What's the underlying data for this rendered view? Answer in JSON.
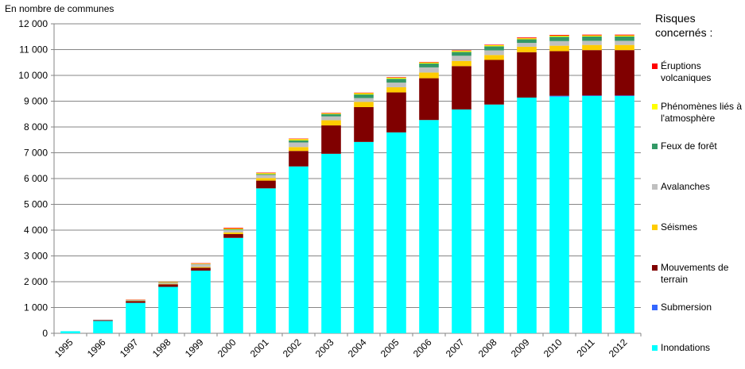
{
  "chart_data": {
    "type": "bar",
    "stacked": true,
    "title": "",
    "ylabel": "En nombre de communes",
    "xlabel": "",
    "ylim": [
      0,
      12000
    ],
    "yticks": [
      0,
      1000,
      2000,
      3000,
      4000,
      5000,
      6000,
      7000,
      8000,
      9000,
      10000,
      11000,
      12000
    ],
    "ytick_labels": [
      "0",
      "1 000",
      "2 000",
      "3 000",
      "4 000",
      "5 000",
      "6 000",
      "7 000",
      "8 000",
      "9 000",
      "10 000",
      "11 000",
      "12 000"
    ],
    "grid": "horizontal",
    "categories": [
      "1995",
      "1996",
      "1997",
      "1998",
      "1999",
      "2000",
      "2001",
      "2002",
      "2003",
      "2004",
      "2005",
      "2006",
      "2007",
      "2008",
      "2009",
      "2010",
      "2011",
      "2012"
    ],
    "series": [
      {
        "name": "Inondations",
        "color": "#00FFFF",
        "values": [
          80,
          480,
          1180,
          1800,
          2430,
          3700,
          5620,
          6470,
          6960,
          7420,
          7790,
          8270,
          8680,
          8870,
          9140,
          9180,
          9200,
          9200
        ]
      },
      {
        "name": "Submersion",
        "color": "#3366FF",
        "values": [
          0,
          0,
          0,
          0,
          0,
          0,
          0,
          0,
          0,
          0,
          0,
          0,
          0,
          0,
          0,
          30,
          20,
          20
        ]
      },
      {
        "name": "Mouvements de terrain",
        "color": "#800000",
        "values": [
          0,
          30,
          70,
          100,
          110,
          150,
          300,
          600,
          1100,
          1350,
          1550,
          1620,
          1680,
          1730,
          1760,
          1730,
          1760,
          1760
        ]
      },
      {
        "name": "Séismes",
        "color": "#FFCC00",
        "values": [
          0,
          0,
          10,
          20,
          30,
          60,
          100,
          150,
          200,
          200,
          200,
          220,
          200,
          190,
          210,
          210,
          200,
          200
        ]
      },
      {
        "name": "Avalanches",
        "color": "#C0C0C0",
        "values": [
          0,
          20,
          20,
          40,
          100,
          100,
          120,
          180,
          150,
          150,
          180,
          200,
          200,
          180,
          150,
          180,
          160,
          160
        ]
      },
      {
        "name": "Feux de forêt",
        "color": "#339966",
        "values": [
          0,
          0,
          10,
          10,
          10,
          20,
          30,
          80,
          90,
          140,
          150,
          150,
          150,
          160,
          140,
          170,
          170,
          170
        ]
      },
      {
        "name": "Phénomènes liés à l'atmosphère",
        "color": "#FFFF00",
        "values": [
          0,
          0,
          10,
          20,
          20,
          30,
          40,
          50,
          30,
          50,
          40,
          40,
          40,
          40,
          40,
          40,
          40,
          40
        ]
      },
      {
        "name": "Éruptions volcaniques",
        "color": "#FF0000",
        "values": [
          0,
          0,
          10,
          10,
          20,
          30,
          20,
          20,
          20,
          20,
          20,
          20,
          20,
          20,
          30,
          30,
          30,
          30
        ]
      }
    ],
    "legend_title": "Risques concernés :",
    "legend_position": "right"
  }
}
